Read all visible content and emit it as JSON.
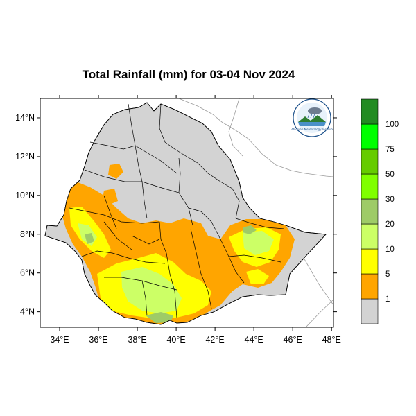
{
  "title": "Total Rainfall (mm) for 03-04 Nov 2024",
  "map": {
    "lon_range": [
      33,
      48.1
    ],
    "lat_range": [
      3.2,
      15
    ],
    "x_ticks": [
      {
        "lon": 34,
        "label": "34°E"
      },
      {
        "lon": 36,
        "label": "36°E"
      },
      {
        "lon": 38,
        "label": "38°E"
      },
      {
        "lon": 40,
        "label": "40°E"
      },
      {
        "lon": 42,
        "label": "42°E"
      },
      {
        "lon": 44,
        "label": "44°E"
      },
      {
        "lon": 46,
        "label": "46°E"
      },
      {
        "lon": 48,
        "label": "48°E"
      }
    ],
    "y_ticks": [
      {
        "lat": 4,
        "label": "4°N"
      },
      {
        "lat": 6,
        "label": "6°N"
      },
      {
        "lat": 8,
        "label": "8°N"
      },
      {
        "lat": 10,
        "label": "10°N"
      },
      {
        "lat": 12,
        "label": "12°N"
      },
      {
        "lat": 14,
        "label": "14°N"
      }
    ],
    "colors": {
      "country_fill": "#d3d3d3",
      "boundary": "#000000",
      "outside_border": "#9a9a9a"
    }
  },
  "legend": {
    "label_values": [
      "1",
      "5",
      "10",
      "20",
      "30",
      "50",
      "75",
      "100"
    ],
    "colors": [
      "#d3d3d3",
      "#ffa500",
      "#ffff00",
      "#ccff66",
      "#9ecb67",
      "#80ff00",
      "#66cc00",
      "#00ff00",
      "#228b22"
    ]
  },
  "logo": {
    "name": "logo-ethiopian-meteorology-institute",
    "lettering": "Ethiopian Meteorology Institute"
  }
}
